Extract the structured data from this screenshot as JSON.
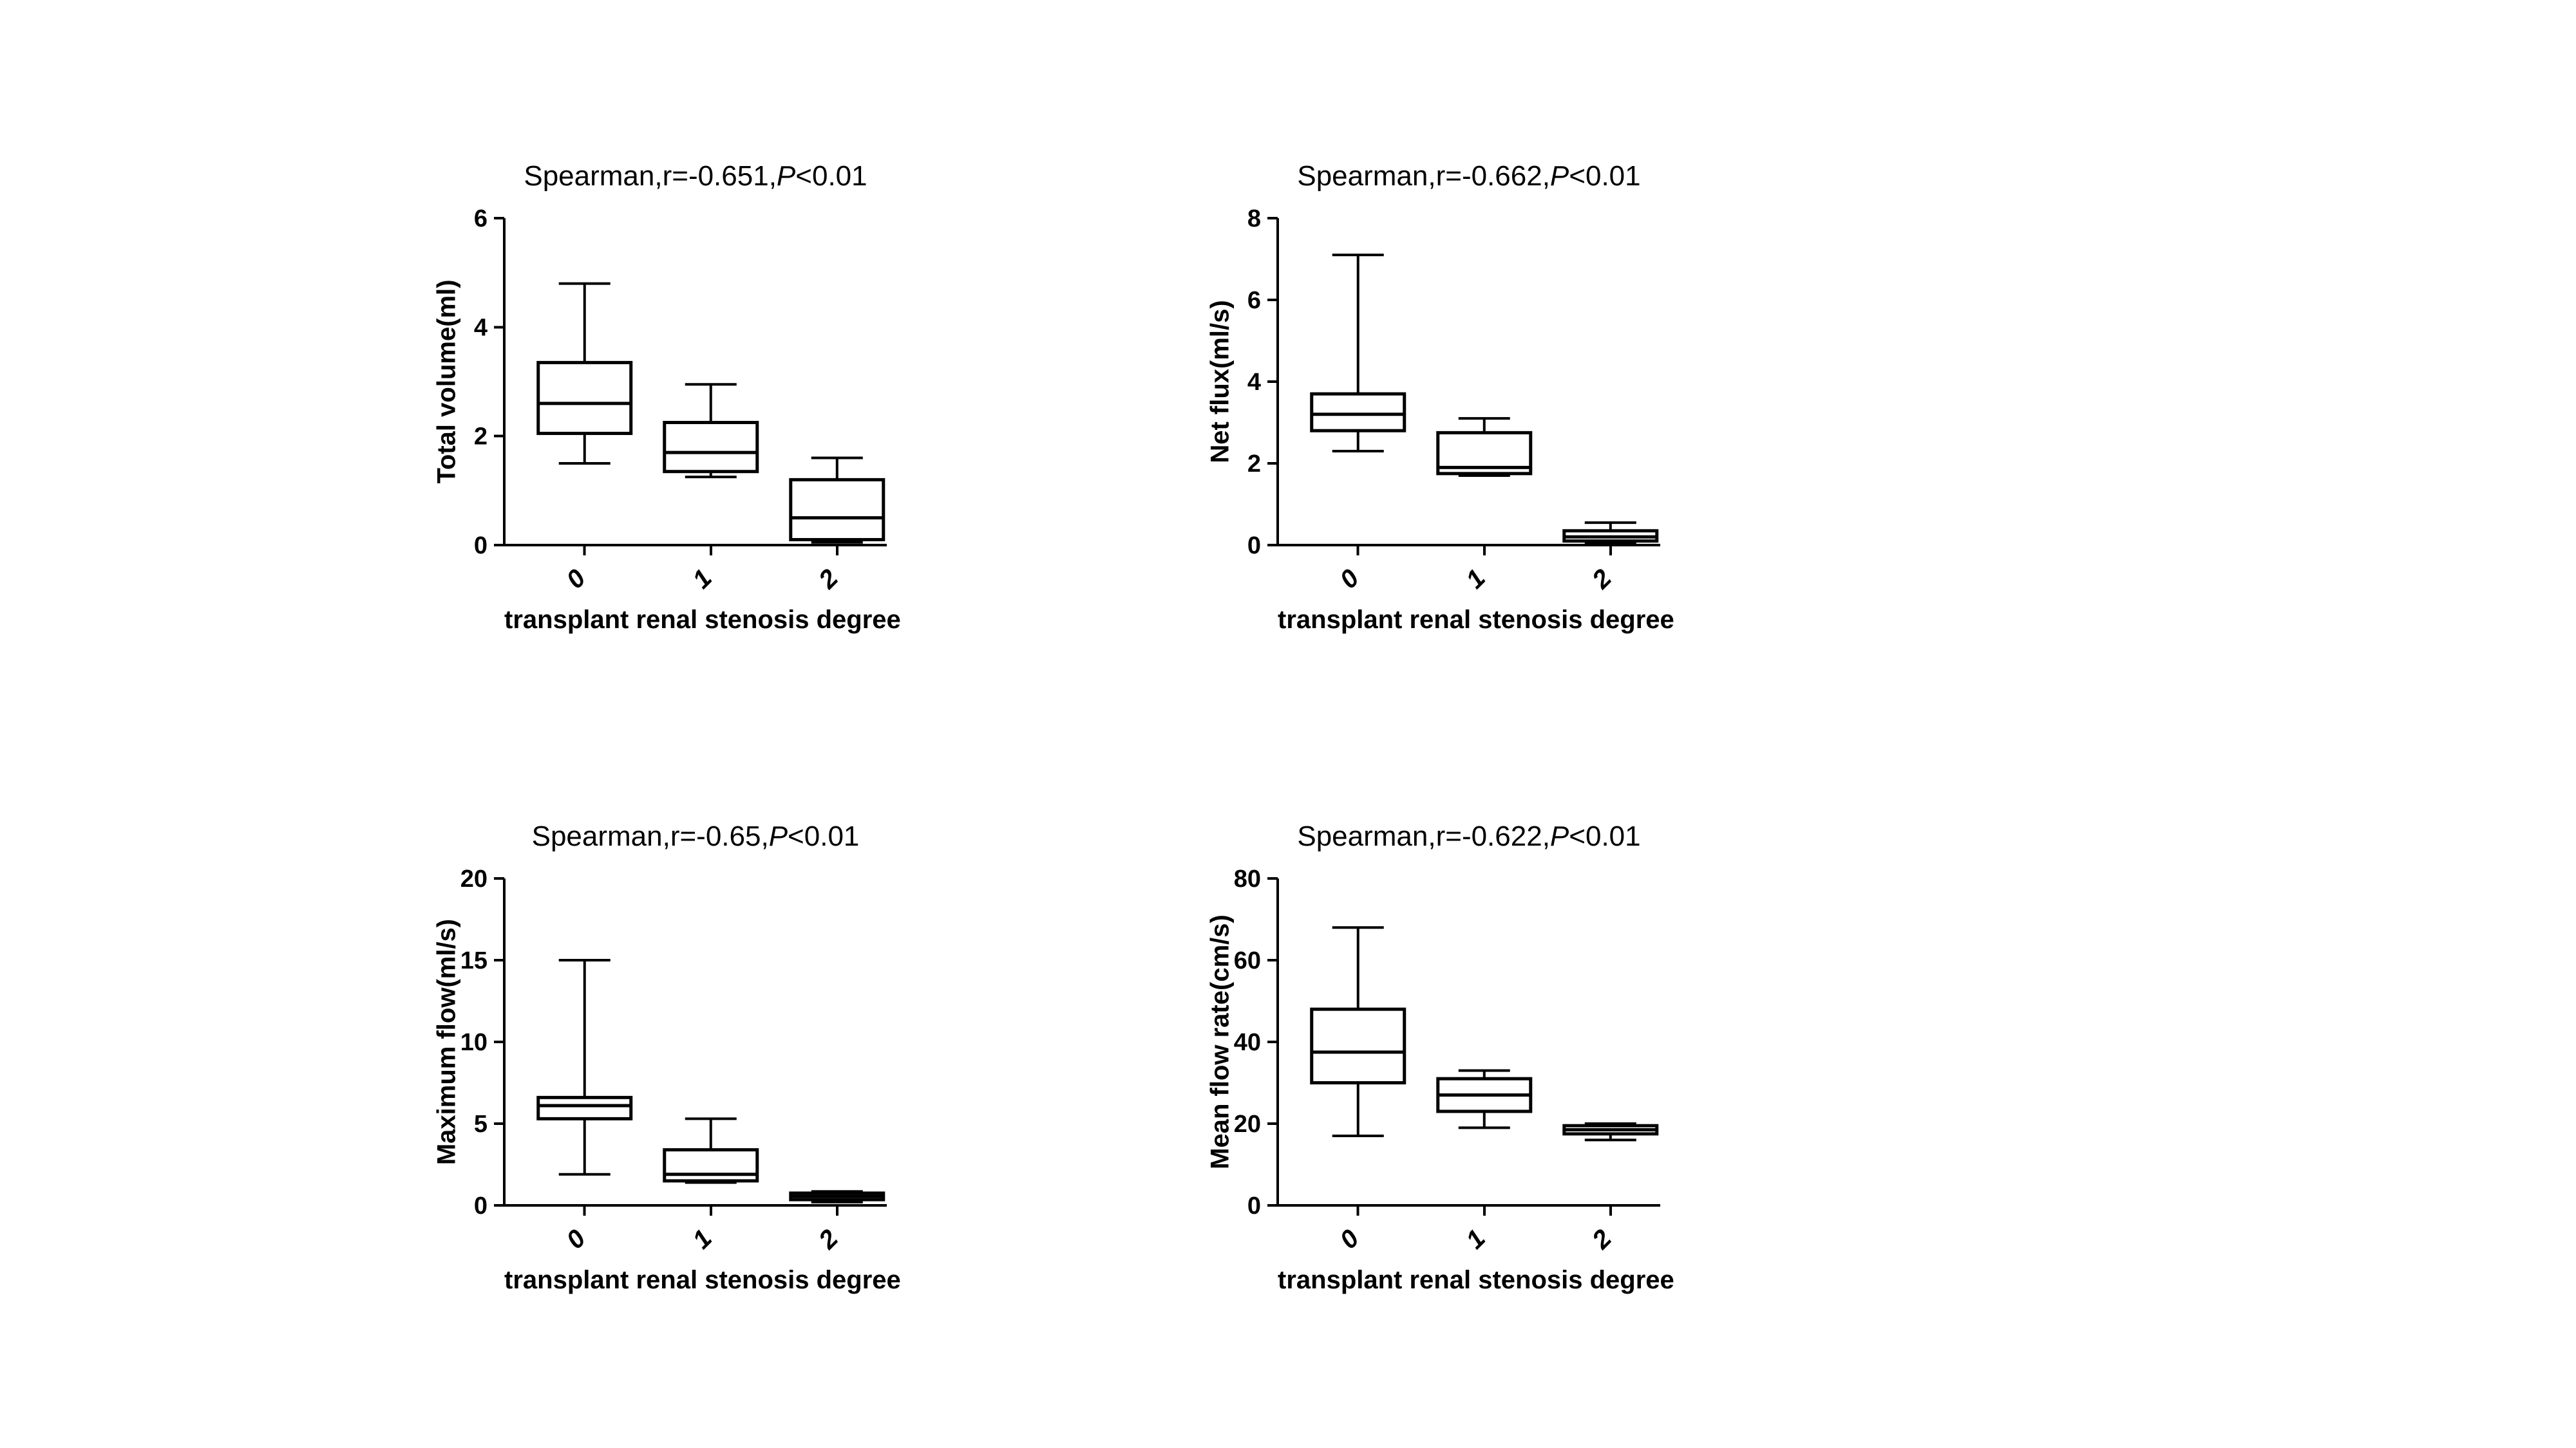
{
  "figure": {
    "background": "#ffffff",
    "line_color": "#000000",
    "panel_count": 4
  },
  "chart_data": [
    {
      "type": "box",
      "title": "Spearman,r=-0.651,P<0.01",
      "title_prefix": "Spearman,r=-0.651,",
      "title_italic": "P",
      "title_suffix": "<0.01",
      "ylabel": "Total volume(ml)",
      "xlabel": "transplant renal stenosis degree",
      "categories": [
        "0",
        "1",
        "2"
      ],
      "ylim": [
        0,
        6
      ],
      "yticks": [
        0,
        2,
        4,
        6
      ],
      "grid": false,
      "legend": "none",
      "boxes": [
        {
          "category": "0",
          "whisker_low": 1.5,
          "q1": 2.05,
          "median": 2.6,
          "q3": 3.35,
          "whisker_high": 4.8
        },
        {
          "category": "1",
          "whisker_low": 1.25,
          "q1": 1.35,
          "median": 1.7,
          "q3": 2.25,
          "whisker_high": 2.95
        },
        {
          "category": "2",
          "whisker_low": 0.05,
          "q1": 0.1,
          "median": 0.5,
          "q3": 1.2,
          "whisker_high": 1.6
        }
      ]
    },
    {
      "type": "box",
      "title": "Spearman,r=-0.662,P<0.01",
      "title_prefix": "Spearman,r=-0.662,",
      "title_italic": "P",
      "title_suffix": "<0.01",
      "ylabel": "Net flux(ml/s)",
      "xlabel": "transplant renal stenosis degree",
      "categories": [
        "0",
        "1",
        "2"
      ],
      "ylim": [
        0,
        8
      ],
      "yticks": [
        0,
        2,
        4,
        6,
        8
      ],
      "grid": false,
      "legend": "none",
      "boxes": [
        {
          "category": "0",
          "whisker_low": 2.3,
          "q1": 2.8,
          "median": 3.2,
          "q3": 3.7,
          "whisker_high": 7.1
        },
        {
          "category": "1",
          "whisker_low": 1.7,
          "q1": 1.75,
          "median": 1.9,
          "q3": 2.75,
          "whisker_high": 3.1
        },
        {
          "category": "2",
          "whisker_low": 0.05,
          "q1": 0.1,
          "median": 0.2,
          "q3": 0.35,
          "whisker_high": 0.55
        }
      ]
    },
    {
      "type": "box",
      "title": "Spearman,r=-0.65,P<0.01",
      "title_prefix": "Spearman,r=-0.65,",
      "title_italic": "P",
      "title_suffix": "<0.01",
      "ylabel": "Maximum flow(ml/s)",
      "xlabel": "transplant renal stenosis degree",
      "categories": [
        "0",
        "1",
        "2"
      ],
      "ylim": [
        0,
        20
      ],
      "yticks": [
        0,
        5,
        10,
        15,
        20
      ],
      "grid": false,
      "legend": "none",
      "boxes": [
        {
          "category": "0",
          "whisker_low": 1.9,
          "q1": 5.3,
          "median": 6.1,
          "q3": 6.6,
          "whisker_high": 15.0
        },
        {
          "category": "1",
          "whisker_low": 1.4,
          "q1": 1.5,
          "median": 1.9,
          "q3": 3.4,
          "whisker_high": 5.3
        },
        {
          "category": "2",
          "whisker_low": 0.2,
          "q1": 0.35,
          "median": 0.55,
          "q3": 0.75,
          "whisker_high": 0.85
        }
      ]
    },
    {
      "type": "box",
      "title": "Spearman,r=-0.622,P<0.01",
      "title_prefix": "Spearman,r=-0.622,",
      "title_italic": "P",
      "title_suffix": "<0.01",
      "ylabel": "Mean flow rate(cm/s)",
      "xlabel": "transplant renal stenosis degree",
      "categories": [
        "0",
        "1",
        "2"
      ],
      "ylim": [
        0,
        80
      ],
      "yticks": [
        0,
        20,
        40,
        60,
        80
      ],
      "grid": false,
      "legend": "none",
      "boxes": [
        {
          "category": "0",
          "whisker_low": 17,
          "q1": 30,
          "median": 37.5,
          "q3": 48,
          "whisker_high": 68
        },
        {
          "category": "1",
          "whisker_low": 19,
          "q1": 23,
          "median": 27,
          "q3": 31,
          "whisker_high": 33
        },
        {
          "category": "2",
          "whisker_low": 16,
          "q1": 17.5,
          "median": 18.5,
          "q3": 19.5,
          "whisker_high": 20
        }
      ]
    }
  ]
}
